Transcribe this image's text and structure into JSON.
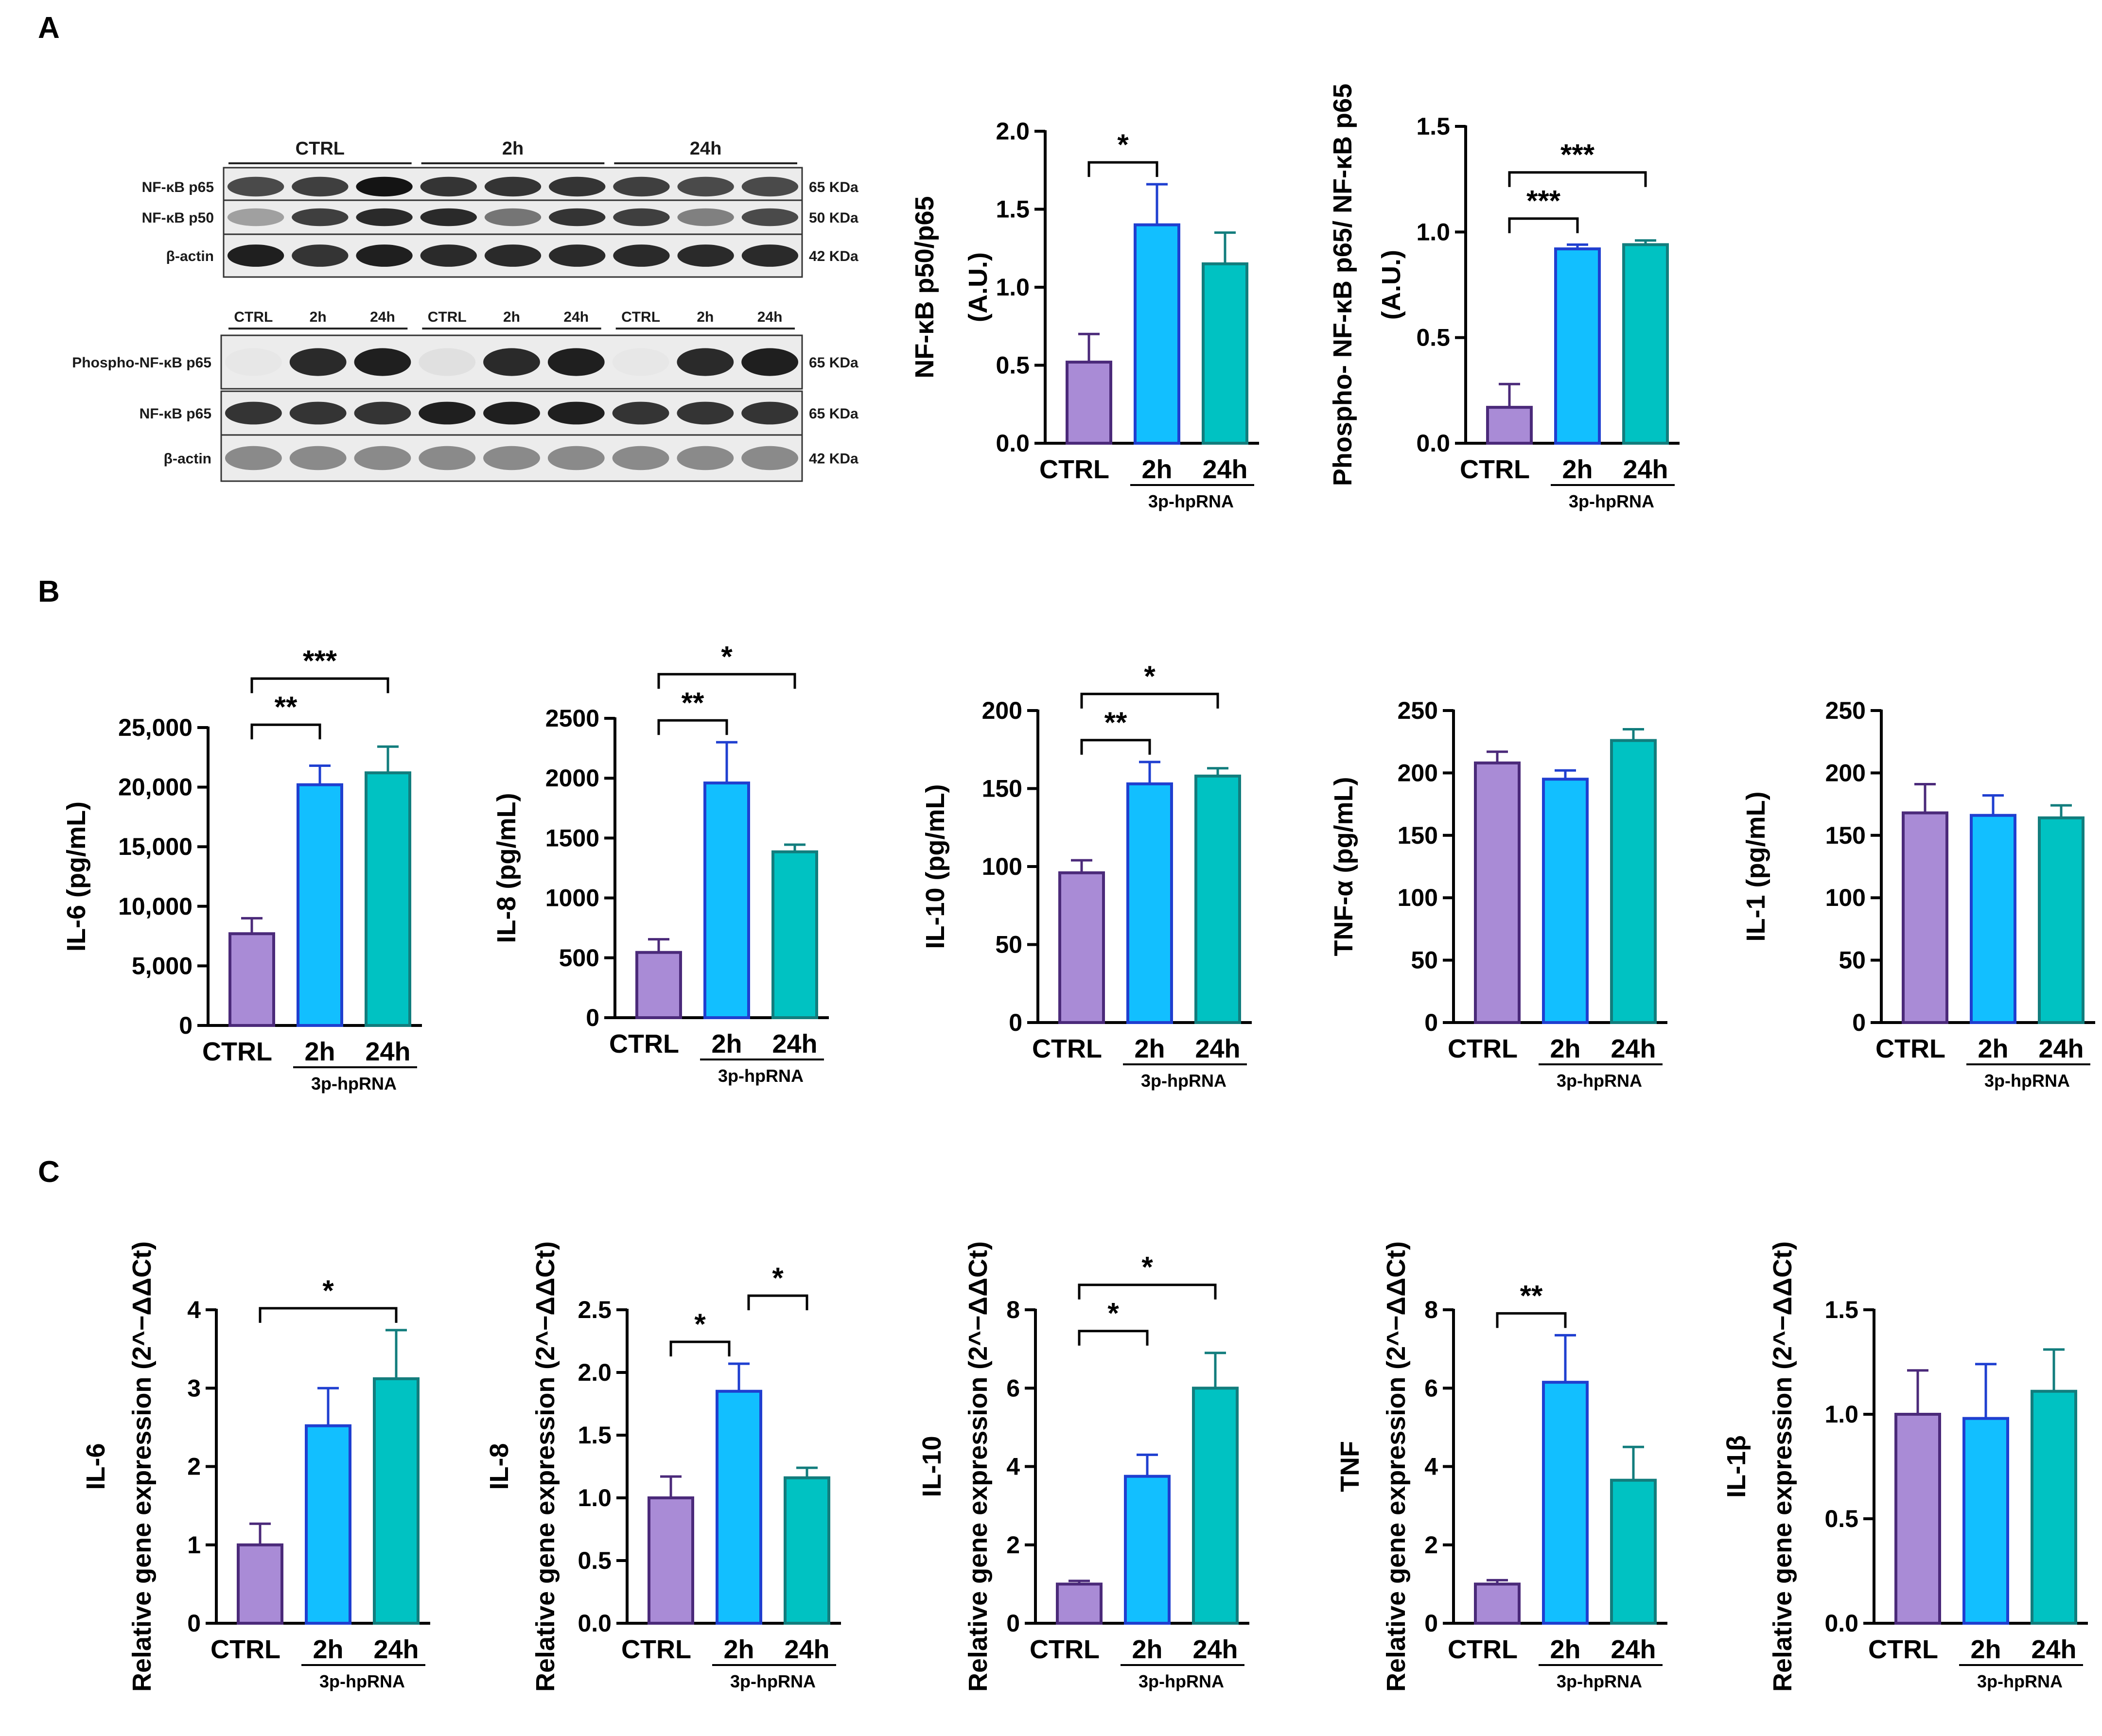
{
  "panel_labels": [
    "A",
    "B",
    "C"
  ],
  "colors": {
    "ctrl": "#a98bd6",
    "ctrl_edge": "#4b2a7a",
    "h2": "#12bfff",
    "h2_edge": "#1f3fd0",
    "h24": "#00c2c2",
    "h24_edge": "#127d7d"
  },
  "blots": [
    {
      "group_labels": [
        "CTRL",
        "2h",
        "24h"
      ],
      "rows": [
        {
          "label": "NF-κB p65",
          "kda": "65 KDa",
          "intensity": [
            0.75,
            0.8,
            1.0,
            0.85,
            0.85,
            0.85,
            0.8,
            0.75,
            0.75
          ]
        },
        {
          "label": "NF-κB p50",
          "kda": "50 KDa",
          "intensity": [
            0.35,
            0.8,
            0.9,
            0.9,
            0.55,
            0.85,
            0.8,
            0.5,
            0.75
          ]
        },
        {
          "label": "β-actin",
          "kda": "42 KDa",
          "intensity": [
            0.95,
            0.85,
            0.95,
            0.9,
            0.9,
            0.9,
            0.9,
            0.9,
            0.9
          ]
        }
      ]
    },
    {
      "group_labels": [
        "CTRL",
        "2h",
        "24h",
        "CTRL",
        "2h",
        "24h",
        "CTRL",
        "2h",
        "24h"
      ],
      "rows": [
        {
          "label": "Phospho-NF-κB  p65",
          "kda": "65 KDa",
          "intensity": [
            0.02,
            0.9,
            0.95,
            0.05,
            0.9,
            0.95,
            0.02,
            0.9,
            0.95
          ]
        },
        {
          "label": "NF-κB p65",
          "kda": "65 KDa",
          "intensity": [
            0.85,
            0.85,
            0.85,
            0.95,
            0.95,
            0.95,
            0.85,
            0.85,
            0.85
          ]
        },
        {
          "label": "β-actin",
          "kda": "42 KDa",
          "intensity": [
            0.45,
            0.45,
            0.45,
            0.45,
            0.45,
            0.45,
            0.45,
            0.45,
            0.45
          ]
        }
      ]
    }
  ],
  "chart_data": [
    {
      "type": "bar",
      "panel": "A",
      "ylabel_lines": [
        "NF-κB p50/p65",
        "(A.U.)"
      ],
      "ylim": [
        0,
        2.0
      ],
      "yticks": [
        "0.0",
        "0.5",
        "1.0",
        "1.5",
        "2.0"
      ],
      "ytick_values": [
        0,
        0.5,
        1.0,
        1.5,
        2.0
      ],
      "categories": [
        "CTRL",
        "2h",
        "24h"
      ],
      "group_label": "3p-hpRNA",
      "values": [
        0.52,
        1.4,
        1.15
      ],
      "errors": [
        0.18,
        0.26,
        0.2
      ],
      "significance": [
        {
          "from": 0,
          "to": 1,
          "label": "*"
        }
      ]
    },
    {
      "type": "bar",
      "panel": "A",
      "ylabel_lines": [
        "Phospho- NF-κB p65/ NF-κB p65",
        "(A.U.)"
      ],
      "ylim": [
        0,
        1.5
      ],
      "yticks": [
        "0.0",
        "0.5",
        "1.0",
        "1.5"
      ],
      "ytick_values": [
        0,
        0.5,
        1.0,
        1.5
      ],
      "categories": [
        "CTRL",
        "2h",
        "24h"
      ],
      "group_label": "3p-hpRNA",
      "values": [
        0.17,
        0.92,
        0.94
      ],
      "errors": [
        0.11,
        0.02,
        0.02
      ],
      "significance": [
        {
          "from": 0,
          "to": 1,
          "label": "***"
        },
        {
          "from": 0,
          "to": 2,
          "label": "***"
        }
      ]
    },
    {
      "type": "bar",
      "panel": "B",
      "ylabel_lines": [
        "IL-6 (pg/mL)"
      ],
      "ylim": [
        0,
        25000
      ],
      "yticks": [
        "0",
        "5,000",
        "10,000",
        "15,000",
        "20,000",
        "25,000"
      ],
      "ytick_values": [
        0,
        5000,
        10000,
        15000,
        20000,
        25000
      ],
      "categories": [
        "CTRL",
        "2h",
        "24h"
      ],
      "group_label": "3p-hpRNA",
      "values": [
        7700,
        20200,
        21200
      ],
      "errors": [
        1300,
        1600,
        2200
      ],
      "significance": [
        {
          "from": 0,
          "to": 1,
          "label": "**"
        },
        {
          "from": 0,
          "to": 2,
          "label": "***"
        }
      ]
    },
    {
      "type": "bar",
      "panel": "B",
      "ylabel_lines": [
        "IL-8 (pg/mL)"
      ],
      "ylim": [
        0,
        2500
      ],
      "yticks": [
        "0",
        "500",
        "1000",
        "1500",
        "2000",
        "2500"
      ],
      "ytick_values": [
        0,
        500,
        1000,
        1500,
        2000,
        2500
      ],
      "categories": [
        "CTRL",
        "2h",
        "24h"
      ],
      "group_label": "3p-hpRNA",
      "values": [
        545,
        1960,
        1385
      ],
      "errors": [
        110,
        340,
        60
      ],
      "significance": [
        {
          "from": 0,
          "to": 1,
          "label": "**"
        },
        {
          "from": 0,
          "to": 2,
          "label": "*"
        }
      ]
    },
    {
      "type": "bar",
      "panel": "B",
      "ylabel_lines": [
        "IL-10 (pg/mL)"
      ],
      "ylim": [
        0,
        200
      ],
      "yticks": [
        "0",
        "50",
        "100",
        "150",
        "200"
      ],
      "ytick_values": [
        0,
        50,
        100,
        150,
        200
      ],
      "categories": [
        "CTRL",
        "2h",
        "24h"
      ],
      "group_label": "3p-hpRNA",
      "values": [
        96,
        153,
        158
      ],
      "errors": [
        8,
        14,
        5
      ],
      "significance": [
        {
          "from": 0,
          "to": 1,
          "label": "**"
        },
        {
          "from": 0,
          "to": 2,
          "label": "*"
        }
      ]
    },
    {
      "type": "bar",
      "panel": "B",
      "ylabel_lines": [
        "TNF-α (pg/mL)"
      ],
      "ylim": [
        0,
        250
      ],
      "yticks": [
        "0",
        "50",
        "100",
        "150",
        "200",
        "250"
      ],
      "ytick_values": [
        0,
        50,
        100,
        150,
        200,
        250
      ],
      "categories": [
        "CTRL",
        "2h",
        "24h"
      ],
      "group_label": "3p-hpRNA",
      "values": [
        208,
        195,
        226
      ],
      "errors": [
        9,
        7,
        9
      ],
      "significance": []
    },
    {
      "type": "bar",
      "panel": "B",
      "ylabel_lines": [
        "IL-1 (pg/mL)"
      ],
      "ylim": [
        0,
        250
      ],
      "yticks": [
        "0",
        "50",
        "100",
        "150",
        "200",
        "250"
      ],
      "ytick_values": [
        0,
        50,
        100,
        150,
        200,
        250
      ],
      "categories": [
        "CTRL",
        "2h",
        "24h"
      ],
      "group_label": "3p-hpRNA",
      "values": [
        168,
        166,
        164
      ],
      "errors": [
        23,
        16,
        10
      ],
      "significance": []
    },
    {
      "type": "bar",
      "panel": "C",
      "ylabel_lines": [
        "IL-6",
        "Relative gene expression (2^−ΔΔCt)"
      ],
      "ylim": [
        0,
        4
      ],
      "yticks": [
        "0",
        "1",
        "2",
        "3",
        "4"
      ],
      "ytick_values": [
        0,
        1,
        2,
        3,
        4
      ],
      "categories": [
        "CTRL",
        "2h",
        "24h"
      ],
      "group_label": "3p-hpRNA",
      "values": [
        1.0,
        2.52,
        3.12
      ],
      "errors": [
        0.27,
        0.48,
        0.62
      ],
      "significance": [
        {
          "from": 0,
          "to": 2,
          "label": "*"
        }
      ]
    },
    {
      "type": "bar",
      "panel": "C",
      "ylabel_lines": [
        "IL-8",
        "Relative gene expression (2^−ΔΔCt)"
      ],
      "ylim": [
        0,
        2.5
      ],
      "yticks": [
        "0.0",
        "0.5",
        "1.0",
        "1.5",
        "2.0",
        "2.5"
      ],
      "ytick_values": [
        0,
        0.5,
        1.0,
        1.5,
        2.0,
        2.5
      ],
      "categories": [
        "CTRL",
        "2h",
        "24h"
      ],
      "group_label": "3p-hpRNA",
      "values": [
        1.0,
        1.85,
        1.16
      ],
      "errors": [
        0.17,
        0.22,
        0.08
      ],
      "significance": [
        {
          "from": 0,
          "to": 1,
          "label": "*"
        },
        {
          "from": 1,
          "to": 2,
          "label": "*"
        }
      ]
    },
    {
      "type": "bar",
      "panel": "C",
      "ylabel_lines": [
        "IL-10",
        "Relative gene expression (2^−ΔΔCt)"
      ],
      "ylim": [
        0,
        8
      ],
      "yticks": [
        "0",
        "2",
        "4",
        "6",
        "8"
      ],
      "ytick_values": [
        0,
        2,
        4,
        6,
        8
      ],
      "categories": [
        "CTRL",
        "2h",
        "24h"
      ],
      "group_label": "3p-hpRNA",
      "values": [
        1.0,
        3.75,
        6.0
      ],
      "errors": [
        0.08,
        0.55,
        0.9
      ],
      "significance": [
        {
          "from": 0,
          "to": 1,
          "label": "*"
        },
        {
          "from": 0,
          "to": 2,
          "label": "*"
        }
      ]
    },
    {
      "type": "bar",
      "panel": "C",
      "ylabel_lines": [
        "TNF",
        "Relative gene expression (2^−ΔΔCt)"
      ],
      "ylim": [
        0,
        8
      ],
      "yticks": [
        "0",
        "2",
        "4",
        "6",
        "8"
      ],
      "ytick_values": [
        0,
        2,
        4,
        6,
        8
      ],
      "categories": [
        "CTRL",
        "2h",
        "24h"
      ],
      "group_label": "3p-hpRNA",
      "values": [
        1.0,
        6.15,
        3.65
      ],
      "errors": [
        0.1,
        1.2,
        0.85
      ],
      "significance": [
        {
          "from": 0,
          "to": 1,
          "label": "**"
        }
      ]
    },
    {
      "type": "bar",
      "panel": "C",
      "ylabel_lines": [
        "IL-1β",
        "Relative gene expression (2^−ΔΔCt)"
      ],
      "ylim": [
        0,
        1.5
      ],
      "yticks": [
        "0.0",
        "0.5",
        "1.0",
        "1.5"
      ],
      "ytick_values": [
        0,
        0.5,
        1.0,
        1.5
      ],
      "categories": [
        "CTRL",
        "2h",
        "24h"
      ],
      "group_label": "3p-hpRNA",
      "values": [
        1.0,
        0.98,
        1.11
      ],
      "errors": [
        0.21,
        0.26,
        0.2
      ],
      "significance": []
    }
  ]
}
